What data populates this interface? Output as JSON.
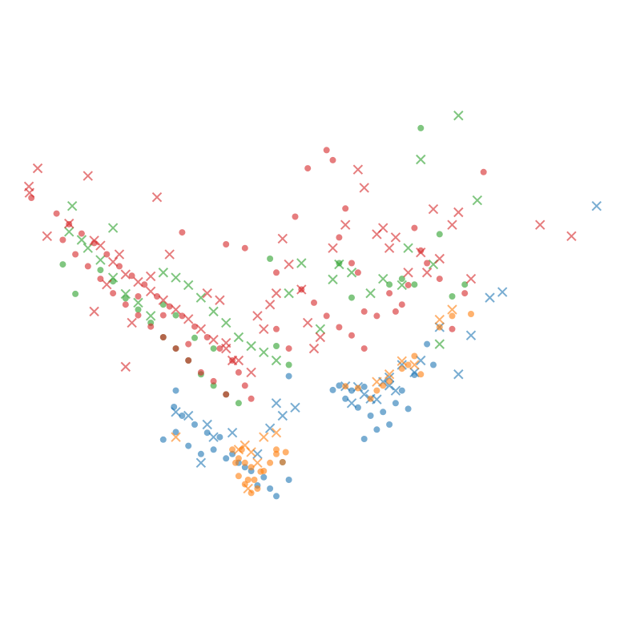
{
  "chart_data": {
    "type": "scatter",
    "title": "",
    "xlabel": "",
    "ylabel": "",
    "axes_visible": false,
    "grid": false,
    "legend": "none",
    "xlim": [
      0,
      100
    ],
    "ylim": [
      0,
      100
    ],
    "series": [
      {
        "color": "#1f77b4",
        "marker": "circle",
        "points": [
          [
            26,
            30
          ],
          [
            28,
            31.2
          ],
          [
            30,
            29
          ],
          [
            32,
            27.7
          ],
          [
            34,
            28.4
          ],
          [
            36,
            27
          ],
          [
            38,
            26.3
          ],
          [
            40,
            25
          ],
          [
            42,
            24
          ],
          [
            43,
            22.2
          ],
          [
            44,
            21
          ],
          [
            41,
            22.7
          ],
          [
            39,
            25.6
          ],
          [
            37,
            27.7
          ],
          [
            35,
            30.4
          ],
          [
            33,
            31.1
          ],
          [
            31,
            32.4
          ],
          [
            29,
            33.8
          ],
          [
            27.7,
            35.2
          ],
          [
            45,
            26.4
          ],
          [
            46,
            23.6
          ],
          [
            55,
            36.5
          ],
          [
            57,
            35.1
          ],
          [
            59,
            33.8
          ],
          [
            61,
            34.4
          ],
          [
            63,
            35.8
          ],
          [
            65,
            34.9
          ],
          [
            62,
            32.4
          ],
          [
            60,
            31.6
          ],
          [
            58,
            30.1
          ],
          [
            56,
            37.8
          ],
          [
            64,
            37.8
          ],
          [
            66,
            40.3
          ],
          [
            68,
            45.2
          ],
          [
            69,
            41.9
          ],
          [
            58,
            38.4
          ],
          [
            53,
            37.9
          ],
          [
            54,
            38.6
          ],
          [
            46,
            40.1
          ],
          [
            28,
            37.8
          ]
        ]
      },
      {
        "color": "#1f77b4",
        "marker": "x",
        "points": [
          [
            28,
            34.4
          ],
          [
            30,
            33.8
          ],
          [
            33,
            32.4
          ],
          [
            37,
            31.1
          ],
          [
            41,
            27.7
          ],
          [
            43,
            31.8
          ],
          [
            45,
            33.8
          ],
          [
            44,
            35.8
          ],
          [
            47,
            35.1
          ],
          [
            55,
            38.5
          ],
          [
            56,
            35.8
          ],
          [
            57,
            38.4
          ],
          [
            58,
            37.2
          ],
          [
            59,
            36.5
          ],
          [
            60,
            36.4
          ],
          [
            61,
            39.2
          ],
          [
            62,
            38.6
          ],
          [
            62,
            39.9
          ],
          [
            63,
            37.8
          ],
          [
            64,
            41.9
          ],
          [
            66,
            40.7
          ],
          [
            67,
            42.6
          ],
          [
            70,
            47.9
          ],
          [
            73,
            40.4
          ],
          [
            75,
            46.6
          ],
          [
            78,
            52.6
          ],
          [
            80,
            53.5
          ],
          [
            95,
            67.2
          ],
          [
            34,
            30.4
          ],
          [
            32,
            26.3
          ]
        ]
      },
      {
        "color": "#ff7f0e",
        "marker": "circle",
        "points": [
          [
            37,
            28.4
          ],
          [
            38,
            27
          ],
          [
            39,
            26.3
          ],
          [
            40,
            25.6
          ],
          [
            38,
            24.2
          ],
          [
            39,
            22.9
          ],
          [
            40,
            21.5
          ],
          [
            41,
            22.2
          ],
          [
            42,
            25
          ],
          [
            43,
            26.3
          ],
          [
            44,
            27.7
          ],
          [
            45,
            26.4
          ],
          [
            39.5,
            23.6
          ],
          [
            40.5,
            23.6
          ],
          [
            41.5,
            24.9
          ],
          [
            37.5,
            26.3
          ],
          [
            38.5,
            28.4
          ],
          [
            55,
            38.5
          ],
          [
            57,
            38.2
          ],
          [
            59,
            36.5
          ],
          [
            60,
            37.8
          ],
          [
            61,
            38.6
          ],
          [
            62,
            39.3
          ],
          [
            64,
            41.3
          ],
          [
            65,
            41.9
          ],
          [
            66,
            43.3
          ],
          [
            67,
            40.4
          ],
          [
            70,
            47.9
          ],
          [
            72,
            49.7
          ],
          [
            75,
            50
          ],
          [
            44,
            28.4
          ],
          [
            45.5,
            28
          ]
        ]
      },
      {
        "color": "#ff7f0e",
        "marker": "x",
        "points": [
          [
            38,
            28.4
          ],
          [
            39,
            29.1
          ],
          [
            40,
            28
          ],
          [
            39.5,
            22.2
          ],
          [
            41,
            26.3
          ],
          [
            42,
            30.4
          ],
          [
            60,
            39.2
          ],
          [
            62,
            40.4
          ],
          [
            64,
            42.5
          ],
          [
            66,
            41.9
          ],
          [
            70,
            49.1
          ],
          [
            72,
            50.7
          ],
          [
            28,
            30.4
          ],
          [
            44,
            31.1
          ]
        ]
      },
      {
        "color": "#2ca02c",
        "marker": "circle",
        "points": [
          [
            10,
            57.9
          ],
          [
            12,
            53.2
          ],
          [
            16,
            57
          ],
          [
            18,
            55.2
          ],
          [
            20,
            52.5
          ],
          [
            22,
            50.7
          ],
          [
            24,
            48.6
          ],
          [
            26,
            46.3
          ],
          [
            28,
            44.5
          ],
          [
            30,
            42.6
          ],
          [
            32,
            40.4
          ],
          [
            34,
            38.6
          ],
          [
            36,
            37.2
          ],
          [
            38,
            35.8
          ],
          [
            43,
            58.8
          ],
          [
            44,
            44.9
          ],
          [
            46,
            41.9
          ],
          [
            54,
            58.1
          ],
          [
            56,
            52.6
          ],
          [
            62,
            54.7
          ],
          [
            64,
            55.6
          ],
          [
            66,
            54.7
          ],
          [
            67,
            79.6
          ],
          [
            70,
            62.7
          ],
          [
            72,
            52.8
          ],
          [
            74,
            54.7
          ],
          [
            26,
            51.5
          ],
          [
            28,
            49.8
          ],
          [
            31,
            46.2
          ],
          [
            34,
            44.5
          ]
        ]
      },
      {
        "color": "#2ca02c",
        "marker": "x",
        "points": [
          [
            11,
            63.1
          ],
          [
            13,
            61.8
          ],
          [
            18,
            63.7
          ],
          [
            11.5,
            67.2
          ],
          [
            14,
            60.5
          ],
          [
            16,
            58.6
          ],
          [
            18,
            55.8
          ],
          [
            20,
            53.2
          ],
          [
            22,
            51.8
          ],
          [
            24,
            49.7
          ],
          [
            26,
            56.6
          ],
          [
            28,
            55.8
          ],
          [
            30,
            54.6
          ],
          [
            32,
            52.6
          ],
          [
            34,
            50.4
          ],
          [
            36,
            48.6
          ],
          [
            38,
            46.3
          ],
          [
            40,
            44.9
          ],
          [
            42,
            43.9
          ],
          [
            44,
            42.6
          ],
          [
            46,
            53.3
          ],
          [
            48,
            58.1
          ],
          [
            51,
            47.6
          ],
          [
            53,
            55.5
          ],
          [
            54,
            57.9
          ],
          [
            56,
            56.6
          ],
          [
            59,
            53.3
          ],
          [
            61,
            55.6
          ],
          [
            64,
            54.6
          ],
          [
            65,
            60.5
          ],
          [
            67,
            74.6
          ],
          [
            69,
            57.9
          ],
          [
            70,
            45.2
          ],
          [
            73,
            81.6
          ],
          [
            76,
            68.1
          ]
        ]
      },
      {
        "color": "#d62728",
        "marker": "circle",
        "points": [
          [
            5,
            68.5
          ],
          [
            9,
            66
          ],
          [
            11,
            64.3
          ],
          [
            13,
            62.8
          ],
          [
            15,
            61.3
          ],
          [
            17,
            59.5
          ],
          [
            19,
            57.6
          ],
          [
            21,
            56.1
          ],
          [
            23,
            54.7
          ],
          [
            25,
            52.8
          ],
          [
            27,
            51.2
          ],
          [
            29,
            49.7
          ],
          [
            31,
            48
          ],
          [
            33,
            46.3
          ],
          [
            35,
            44.5
          ],
          [
            37,
            42.6
          ],
          [
            38,
            40.7
          ],
          [
            39,
            38.6
          ],
          [
            40,
            36.5
          ],
          [
            36,
            37.2
          ],
          [
            34,
            39.3
          ],
          [
            32,
            40.7
          ],
          [
            30,
            42.6
          ],
          [
            28,
            44.5
          ],
          [
            26,
            46.3
          ],
          [
            24,
            48
          ],
          [
            22,
            49.8
          ],
          [
            20,
            51.5
          ],
          [
            18,
            53.3
          ],
          [
            16,
            55.6
          ],
          [
            14,
            57.6
          ],
          [
            12,
            59.5
          ],
          [
            10,
            61.8
          ],
          [
            22,
            52.8
          ],
          [
            26,
            49.8
          ],
          [
            30,
            45.2
          ],
          [
            29,
            63
          ],
          [
            36,
            61.1
          ],
          [
            39,
            60.5
          ],
          [
            44,
            56.6
          ],
          [
            47,
            65.5
          ],
          [
            49,
            73.2
          ],
          [
            52,
            76.1
          ],
          [
            53,
            74.5
          ],
          [
            55,
            66.8
          ],
          [
            54,
            62.2
          ],
          [
            56,
            58.1
          ],
          [
            57,
            56.6
          ],
          [
            58,
            50.4
          ],
          [
            60,
            49.7
          ],
          [
            62,
            53.3
          ],
          [
            63,
            50.4
          ],
          [
            64,
            51.5
          ],
          [
            65,
            54.6
          ],
          [
            66,
            63.7
          ],
          [
            67,
            60.1
          ],
          [
            68,
            58.1
          ],
          [
            70,
            55.6
          ],
          [
            72,
            47.6
          ],
          [
            74,
            53.3
          ],
          [
            77,
            72.6
          ],
          [
            48,
            53.9
          ],
          [
            50,
            51.8
          ],
          [
            52,
            49.7
          ],
          [
            54,
            47.9
          ],
          [
            56,
            46.6
          ],
          [
            58,
            44.5
          ],
          [
            46,
            44.5
          ],
          [
            44,
            47.6
          ]
        ]
      },
      {
        "color": "#d62728",
        "marker": "x",
        "points": [
          [
            4.7,
            69.3
          ],
          [
            4.6,
            70.3
          ],
          [
            6,
            73.2
          ],
          [
            14,
            72
          ],
          [
            25,
            68.6
          ],
          [
            7.5,
            62.4
          ],
          [
            11,
            64.4
          ],
          [
            15,
            61.7
          ],
          [
            16,
            60.9
          ],
          [
            18,
            58.3
          ],
          [
            20,
            56.3
          ],
          [
            22,
            55.1
          ],
          [
            24,
            53.6
          ],
          [
            26,
            52.2
          ],
          [
            28,
            50.7
          ],
          [
            30,
            49.2
          ],
          [
            32,
            47.6
          ],
          [
            34,
            45.9
          ],
          [
            36,
            44.5
          ],
          [
            38,
            42.6
          ],
          [
            40,
            40.7
          ],
          [
            20,
            41.6
          ],
          [
            24,
            56
          ],
          [
            27,
            59.5
          ],
          [
            33,
            53.3
          ],
          [
            35,
            52.2
          ],
          [
            36,
            45.4
          ],
          [
            37,
            42.6
          ],
          [
            41,
            49.7
          ],
          [
            42,
            47.6
          ],
          [
            43,
            51.5
          ],
          [
            44,
            53.3
          ],
          [
            45,
            62
          ],
          [
            46,
            57.9
          ],
          [
            48,
            53.9
          ],
          [
            49,
            48.6
          ],
          [
            50,
            44.5
          ],
          [
            51,
            46.3
          ],
          [
            53,
            60.5
          ],
          [
            55,
            64.2
          ],
          [
            57,
            73
          ],
          [
            58,
            70.1
          ],
          [
            60,
            62.7
          ],
          [
            61,
            63.7
          ],
          [
            62,
            60.5
          ],
          [
            63,
            62.2
          ],
          [
            65,
            56.6
          ],
          [
            67,
            59.8
          ],
          [
            68,
            56.6
          ],
          [
            69,
            66.7
          ],
          [
            70,
            58.8
          ],
          [
            72,
            64.2
          ],
          [
            73,
            66.2
          ],
          [
            75,
            55.6
          ],
          [
            86,
            64.2
          ],
          [
            91,
            62.4
          ],
          [
            15,
            50.4
          ],
          [
            17,
            54.7
          ],
          [
            19,
            59.5
          ],
          [
            21,
            48.6
          ]
        ]
      }
    ]
  }
}
